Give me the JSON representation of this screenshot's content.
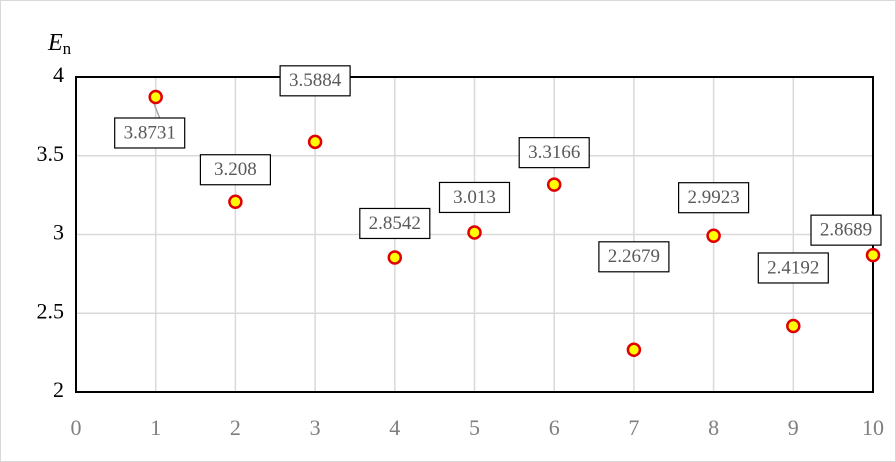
{
  "chart_data": {
    "type": "scatter",
    "ylabel": "E",
    "ylabel_subscript": "n",
    "x": [
      1,
      2,
      3,
      4,
      5,
      6,
      7,
      8,
      9,
      10
    ],
    "values": [
      3.8731,
      3.208,
      3.5884,
      2.8542,
      3.013,
      3.3166,
      2.2679,
      2.9923,
      2.4192,
      2.8689
    ],
    "marker_fill": "#ffff00",
    "marker_edge": "#e00000",
    "xlim": [
      0,
      10
    ],
    "xticks": [
      0,
      1,
      2,
      3,
      4,
      5,
      6,
      7,
      8,
      9,
      10
    ],
    "ylim": [
      2,
      4
    ],
    "yticks": [
      2,
      2.5,
      3,
      3.5,
      4
    ],
    "grid": true
  }
}
